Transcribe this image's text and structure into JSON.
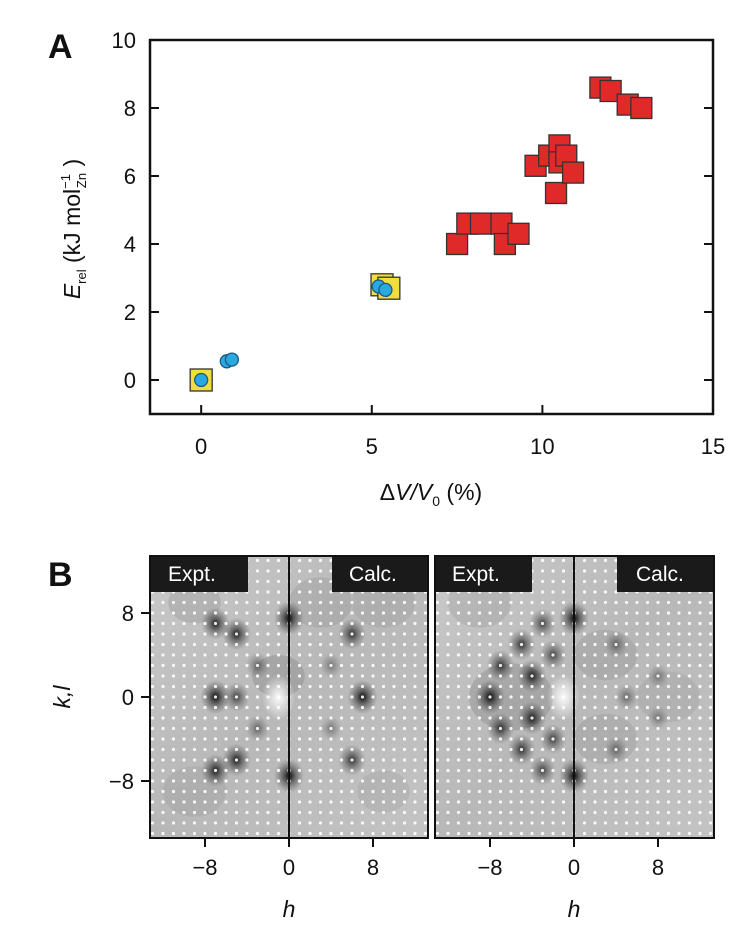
{
  "panel_a": {
    "letter": "A",
    "xlabel": {
      "delta": "Δ",
      "v": "V",
      "slash": "/",
      "v0": "V",
      "v0_sub": "0",
      "unit": " (%)"
    },
    "ylabel": {
      "e": "E",
      "e_sub": "rel",
      "unit_open": " (kJ mol",
      "sup": "−1",
      "sub": "Zn",
      "unit_close": " )"
    }
  },
  "panel_b": {
    "letter": "B",
    "ylabel": "k,l",
    "xlabel": "h",
    "maps": [
      {
        "left_tag": "Expt.",
        "right_tag": "Calc.",
        "x_ticks": [
          "−8",
          "0",
          "8"
        ]
      },
      {
        "left_tag": "Expt.",
        "right_tag": "Calc.",
        "x_ticks": [
          "−8",
          "0",
          "8"
        ]
      }
    ],
    "y_ticks": [
      "8",
      "0",
      "−8"
    ]
  },
  "chart_data": [
    {
      "type": "scatter",
      "xlim": [
        -1.5,
        15
      ],
      "ylim": [
        -1,
        10
      ],
      "x_ticks": [
        0,
        5,
        10,
        15
      ],
      "y_ticks": [
        0,
        2,
        4,
        6,
        8,
        10
      ],
      "grid": false,
      "colors": {
        "red": "#e02a2a",
        "yellow": "#f2de3a",
        "blue": "#29a9e0",
        "edge": "#333333"
      },
      "series": [
        {
          "marker": "square",
          "color": "#e02a2a",
          "x": [
            7.5,
            7.8,
            8.2,
            8.8,
            8.9,
            9.3,
            9.8,
            10.2,
            10.4,
            10.5,
            10.5,
            10.7,
            10.9,
            11.7,
            12.0,
            12.5,
            12.9
          ],
          "y": [
            4.0,
            4.6,
            4.6,
            4.6,
            4.0,
            4.3,
            6.3,
            6.6,
            5.5,
            6.9,
            6.4,
            6.6,
            6.1,
            8.6,
            8.5,
            8.1,
            8.0
          ]
        },
        {
          "marker": "square",
          "color": "#f2de3a",
          "x": [
            0.0,
            5.3,
            5.5
          ],
          "y": [
            0.0,
            2.8,
            2.7
          ]
        },
        {
          "marker": "circle",
          "color": "#29a9e0",
          "x": [
            0.0,
            0.75,
            0.9,
            5.2,
            5.4
          ],
          "y": [
            0.0,
            0.55,
            0.6,
            2.75,
            2.65
          ]
        }
      ]
    },
    {
      "type": "heatmap",
      "map_index": 0,
      "h_range": [
        -12,
        12
      ],
      "kl_range": [
        -12,
        12
      ],
      "h_ticks": [
        -8,
        0,
        8
      ],
      "kl_ticks": [
        8,
        0,
        -8
      ],
      "dark_spots": [
        [
          -7,
          7,
          0.9
        ],
        [
          -5,
          6,
          0.9
        ],
        [
          -7,
          0,
          1
        ],
        [
          -5,
          0,
          0.7
        ],
        [
          -7,
          -7,
          0.9
        ],
        [
          -5,
          -6,
          0.9
        ],
        [
          0,
          7.5,
          1
        ],
        [
          0,
          -7.5,
          1
        ],
        [
          6,
          6,
          0.8
        ],
        [
          7,
          0,
          1
        ],
        [
          6,
          -6,
          0.8
        ],
        [
          -3,
          3,
          0.5
        ],
        [
          -3,
          -3,
          0.5
        ],
        [
          4,
          3,
          0.4
        ],
        [
          4,
          -3,
          0.4
        ]
      ]
    },
    {
      "type": "heatmap",
      "map_index": 1,
      "h_range": [
        -12,
        12
      ],
      "kl_range": [
        -12,
        12
      ],
      "h_ticks": [
        -8,
        0,
        8
      ],
      "kl_ticks": [
        8,
        0,
        -8
      ],
      "dark_spots": [
        [
          -8,
          0,
          1
        ],
        [
          -7,
          3,
          0.8
        ],
        [
          -7,
          -3,
          0.8
        ],
        [
          -5,
          5,
          0.8
        ],
        [
          -5,
          -5,
          0.8
        ],
        [
          -4,
          2,
          0.9
        ],
        [
          -4,
          -2,
          0.9
        ],
        [
          -3,
          7,
          0.7
        ],
        [
          -3,
          -7,
          0.7
        ],
        [
          -2,
          4,
          0.7
        ],
        [
          -2,
          -4,
          0.7
        ],
        [
          0,
          7.5,
          1
        ],
        [
          0,
          -7.5,
          1
        ],
        [
          4,
          5,
          0.5
        ],
        [
          5,
          0,
          0.5
        ],
        [
          4,
          -5,
          0.5
        ],
        [
          8,
          2,
          0.4
        ],
        [
          8,
          -2,
          0.4
        ]
      ]
    }
  ]
}
